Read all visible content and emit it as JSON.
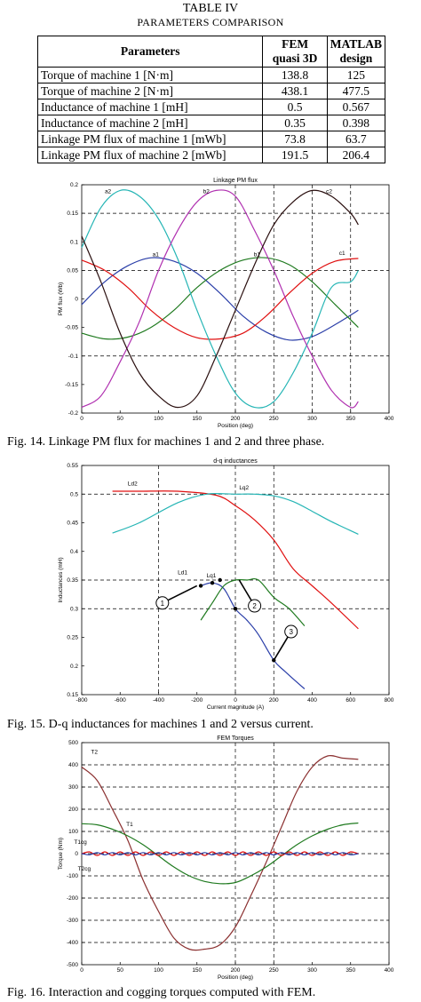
{
  "table": {
    "title": "TABLE IV",
    "subtitle": "PARAMETERS COMPARISON",
    "headers": [
      "Parameters",
      "FEM quasi 3D",
      "MATLAB design"
    ],
    "header_lines": {
      "fem": [
        "FEM",
        "quasi 3D"
      ],
      "matlab": [
        "MATLAB",
        "design"
      ]
    },
    "rows": [
      [
        "Torque of machine 1 [N·m]",
        "138.8",
        "125"
      ],
      [
        "Torque of machine 2 [N·m]",
        "438.1",
        "477.5"
      ],
      [
        "Inductance of machine 1 [mH]",
        "0.5",
        "0.567"
      ],
      [
        "Inductance of machine 2 [mH]",
        "0.35",
        "0.398"
      ],
      [
        "Linkage PM flux of machine 1 [mWb]",
        "73.8",
        "63.7"
      ],
      [
        "Linkage PM flux of machine 2 [mWb]",
        "191.5",
        "206.4"
      ]
    ]
  },
  "captions": {
    "fig14": "Fig. 14.  Linkage PM flux for machines 1 and 2 and three phase.",
    "fig15": "Fig. 15.  D-q inductances for machines 1 and 2 versus current.",
    "fig16": "Fig. 16. Interaction and cogging torques computed with FEM."
  },
  "chart_data": [
    {
      "type": "line",
      "title": "Linkage PM flux",
      "xlabel": "Position (deg)",
      "ylabel": "PM flux (Wb)",
      "xlim": [
        0,
        400
      ],
      "ylim": [
        -0.2,
        0.2
      ],
      "xticks": [
        "0",
        "50",
        "100",
        "150",
        "200",
        "250",
        "300",
        "350",
        "400"
      ],
      "yticks": [
        "0.2",
        "0.15",
        "0.1",
        "0.05",
        "0",
        "-0.05",
        "-0.1",
        "-0.15",
        "-0.2"
      ],
      "grid": "dashed reference lines",
      "series": [
        {
          "name": "a1",
          "color": "#2a3ea8",
          "x": [
            0,
            30,
            60,
            90,
            120,
            150,
            180,
            210,
            240,
            270,
            300,
            330,
            360
          ],
          "values": [
            -0.01,
            0.03,
            0.058,
            0.072,
            0.066,
            0.045,
            0.01,
            -0.03,
            -0.058,
            -0.072,
            -0.066,
            -0.045,
            -0.02
          ]
        },
        {
          "name": "b1",
          "color": "#1f7a1f",
          "x": [
            0,
            30,
            60,
            90,
            120,
            150,
            180,
            210,
            240,
            270,
            300,
            330,
            360
          ],
          "values": [
            -0.06,
            -0.07,
            -0.067,
            -0.05,
            -0.02,
            0.02,
            0.05,
            0.068,
            0.072,
            0.06,
            0.03,
            -0.01,
            -0.05
          ]
        },
        {
          "name": "c1",
          "color": "#e01010",
          "x": [
            0,
            30,
            60,
            90,
            120,
            150,
            180,
            210,
            240,
            270,
            300,
            330,
            360
          ],
          "values": [
            0.068,
            0.05,
            0.02,
            -0.02,
            -0.05,
            -0.068,
            -0.07,
            -0.06,
            -0.03,
            0.01,
            0.045,
            0.066,
            0.071
          ]
        },
        {
          "name": "a2",
          "color": "#25b5b5",
          "x": [
            0,
            25,
            50,
            75,
            100,
            125,
            150,
            175,
            200,
            225,
            250,
            275,
            300,
            325,
            350,
            360
          ],
          "values": [
            0.09,
            0.16,
            0.19,
            0.18,
            0.14,
            0.07,
            -0.02,
            -0.1,
            -0.165,
            -0.19,
            -0.18,
            -0.13,
            -0.06,
            0.02,
            0.03,
            0.05
          ]
        },
        {
          "name": "b2",
          "color": "#b030b0",
          "x": [
            0,
            25,
            50,
            75,
            100,
            125,
            150,
            175,
            200,
            225,
            250,
            275,
            300,
            325,
            350,
            360
          ],
          "values": [
            -0.19,
            -0.17,
            -0.11,
            -0.04,
            0.05,
            0.12,
            0.17,
            0.19,
            0.18,
            0.12,
            0.05,
            -0.03,
            -0.1,
            -0.16,
            -0.19,
            -0.18
          ]
        },
        {
          "name": "c2",
          "color": "#2a0f0f",
          "x": [
            0,
            25,
            50,
            75,
            100,
            125,
            150,
            175,
            200,
            225,
            250,
            275,
            300,
            325,
            350,
            360
          ],
          "values": [
            0.11,
            0.03,
            -0.06,
            -0.13,
            -0.17,
            -0.19,
            -0.17,
            -0.1,
            -0.02,
            0.06,
            0.13,
            0.17,
            0.19,
            0.18,
            0.15,
            0.13
          ]
        }
      ]
    },
    {
      "type": "line",
      "title": "d-q inductances",
      "xlabel": "Current magnitude (A)",
      "ylabel": "Inductances (mH)",
      "xlim": [
        -800,
        800
      ],
      "ylim": [
        0.15,
        0.55
      ],
      "xticks": [
        "-800",
        "-600",
        "-400",
        "-200",
        "0",
        "200",
        "400",
        "600",
        "800"
      ],
      "yticks": [
        "0.55",
        "0.5",
        "0.45",
        "0.4",
        "0.35",
        "0.3",
        "0.25",
        "0.2",
        "0.15"
      ],
      "labels": [
        "Ld2",
        "Lq2",
        "Ld1",
        "Lq1"
      ],
      "markers": [
        "1",
        "2",
        "3"
      ],
      "series": [
        {
          "name": "Ld2",
          "color": "#e01010",
          "x": [
            -640,
            -500,
            -300,
            -100,
            0,
            100,
            200,
            300,
            400,
            500,
            640
          ],
          "values": [
            0.505,
            0.505,
            0.505,
            0.498,
            0.48,
            0.455,
            0.42,
            0.37,
            0.34,
            0.31,
            0.265
          ]
        },
        {
          "name": "Lq2",
          "color": "#25b5b5",
          "x": [
            -640,
            -500,
            -300,
            -150,
            0,
            100,
            200,
            300,
            400,
            500,
            640
          ],
          "values": [
            0.432,
            0.45,
            0.485,
            0.5,
            0.5,
            0.5,
            0.497,
            0.487,
            0.47,
            0.452,
            0.43
          ]
        },
        {
          "name": "Ld1",
          "color": "#2a3ea8",
          "x": [
            -180,
            -120,
            -60,
            0,
            60,
            120,
            200,
            260,
            360
          ],
          "values": [
            0.34,
            0.345,
            0.335,
            0.3,
            0.28,
            0.255,
            0.21,
            0.19,
            0.16
          ]
        },
        {
          "name": "Lq1",
          "color": "#1f7a1f",
          "x": [
            -180,
            -120,
            -60,
            0,
            60,
            120,
            200,
            280,
            360
          ],
          "values": [
            0.28,
            0.31,
            0.34,
            0.35,
            0.35,
            0.35,
            0.32,
            0.3,
            0.27
          ]
        }
      ]
    },
    {
      "type": "line",
      "title": "FEM Torques",
      "xlabel": "Position (deg)",
      "ylabel": "Torque (Nm)",
      "xlim": [
        0,
        400
      ],
      "ylim": [
        -500,
        500
      ],
      "xticks": [
        "0",
        "50",
        "100",
        "150",
        "200",
        "250",
        "300",
        "350",
        "400"
      ],
      "yticks": [
        "500",
        "400",
        "300",
        "200",
        "100",
        "0",
        "-100",
        "-200",
        "-300",
        "-400",
        "-500"
      ],
      "labels": [
        "T2",
        "T1",
        "T1cg",
        "T2cg"
      ],
      "series": [
        {
          "name": "T2",
          "color": "#8b3030",
          "x": [
            0,
            20,
            40,
            60,
            80,
            100,
            120,
            140,
            160,
            180,
            200,
            220,
            240,
            260,
            280,
            300,
            320,
            340,
            360
          ],
          "values": [
            390,
            330,
            200,
            60,
            -120,
            -260,
            -380,
            -430,
            -430,
            -410,
            -330,
            -190,
            -40,
            120,
            280,
            390,
            440,
            430,
            425
          ]
        },
        {
          "name": "T1",
          "color": "#1f7a1f",
          "x": [
            0,
            20,
            40,
            60,
            80,
            100,
            120,
            140,
            160,
            180,
            200,
            220,
            240,
            260,
            280,
            300,
            320,
            340,
            360
          ],
          "values": [
            135,
            130,
            110,
            80,
            40,
            -10,
            -60,
            -100,
            -125,
            -135,
            -130,
            -100,
            -60,
            -10,
            40,
            80,
            110,
            130,
            138
          ]
        },
        {
          "name": "T1cg",
          "color": "#e01010",
          "x": [
            0,
            10,
            20,
            30,
            40,
            50,
            60,
            70,
            80,
            90,
            100,
            110,
            120,
            130,
            140,
            150,
            160,
            170,
            180,
            190,
            200,
            210,
            220,
            230,
            240,
            250,
            260,
            270,
            280,
            290,
            300,
            310,
            320,
            330,
            340,
            350,
            360
          ],
          "values": [
            0,
            8,
            -8,
            8,
            -8,
            8,
            -8,
            8,
            -8,
            8,
            -8,
            8,
            -8,
            8,
            -8,
            8,
            -8,
            8,
            -8,
            8,
            -8,
            8,
            -8,
            8,
            -8,
            8,
            -8,
            8,
            -8,
            8,
            -8,
            8,
            -8,
            8,
            -8,
            8,
            0
          ]
        },
        {
          "name": "T2cg",
          "color": "#2a3ea8",
          "x": [
            0,
            10,
            20,
            30,
            40,
            50,
            60,
            70,
            80,
            90,
            100,
            110,
            120,
            130,
            140,
            150,
            160,
            170,
            180,
            190,
            200,
            210,
            220,
            230,
            240,
            250,
            260,
            270,
            280,
            290,
            300,
            310,
            320,
            330,
            340,
            350,
            360
          ],
          "values": [
            0,
            -5,
            5,
            -5,
            5,
            -5,
            5,
            -5,
            5,
            -5,
            5,
            -5,
            5,
            -5,
            5,
            -5,
            5,
            -5,
            5,
            -5,
            5,
            -5,
            5,
            -5,
            5,
            -5,
            5,
            -5,
            5,
            -5,
            5,
            -5,
            5,
            -5,
            5,
            -5,
            0
          ]
        }
      ]
    }
  ]
}
